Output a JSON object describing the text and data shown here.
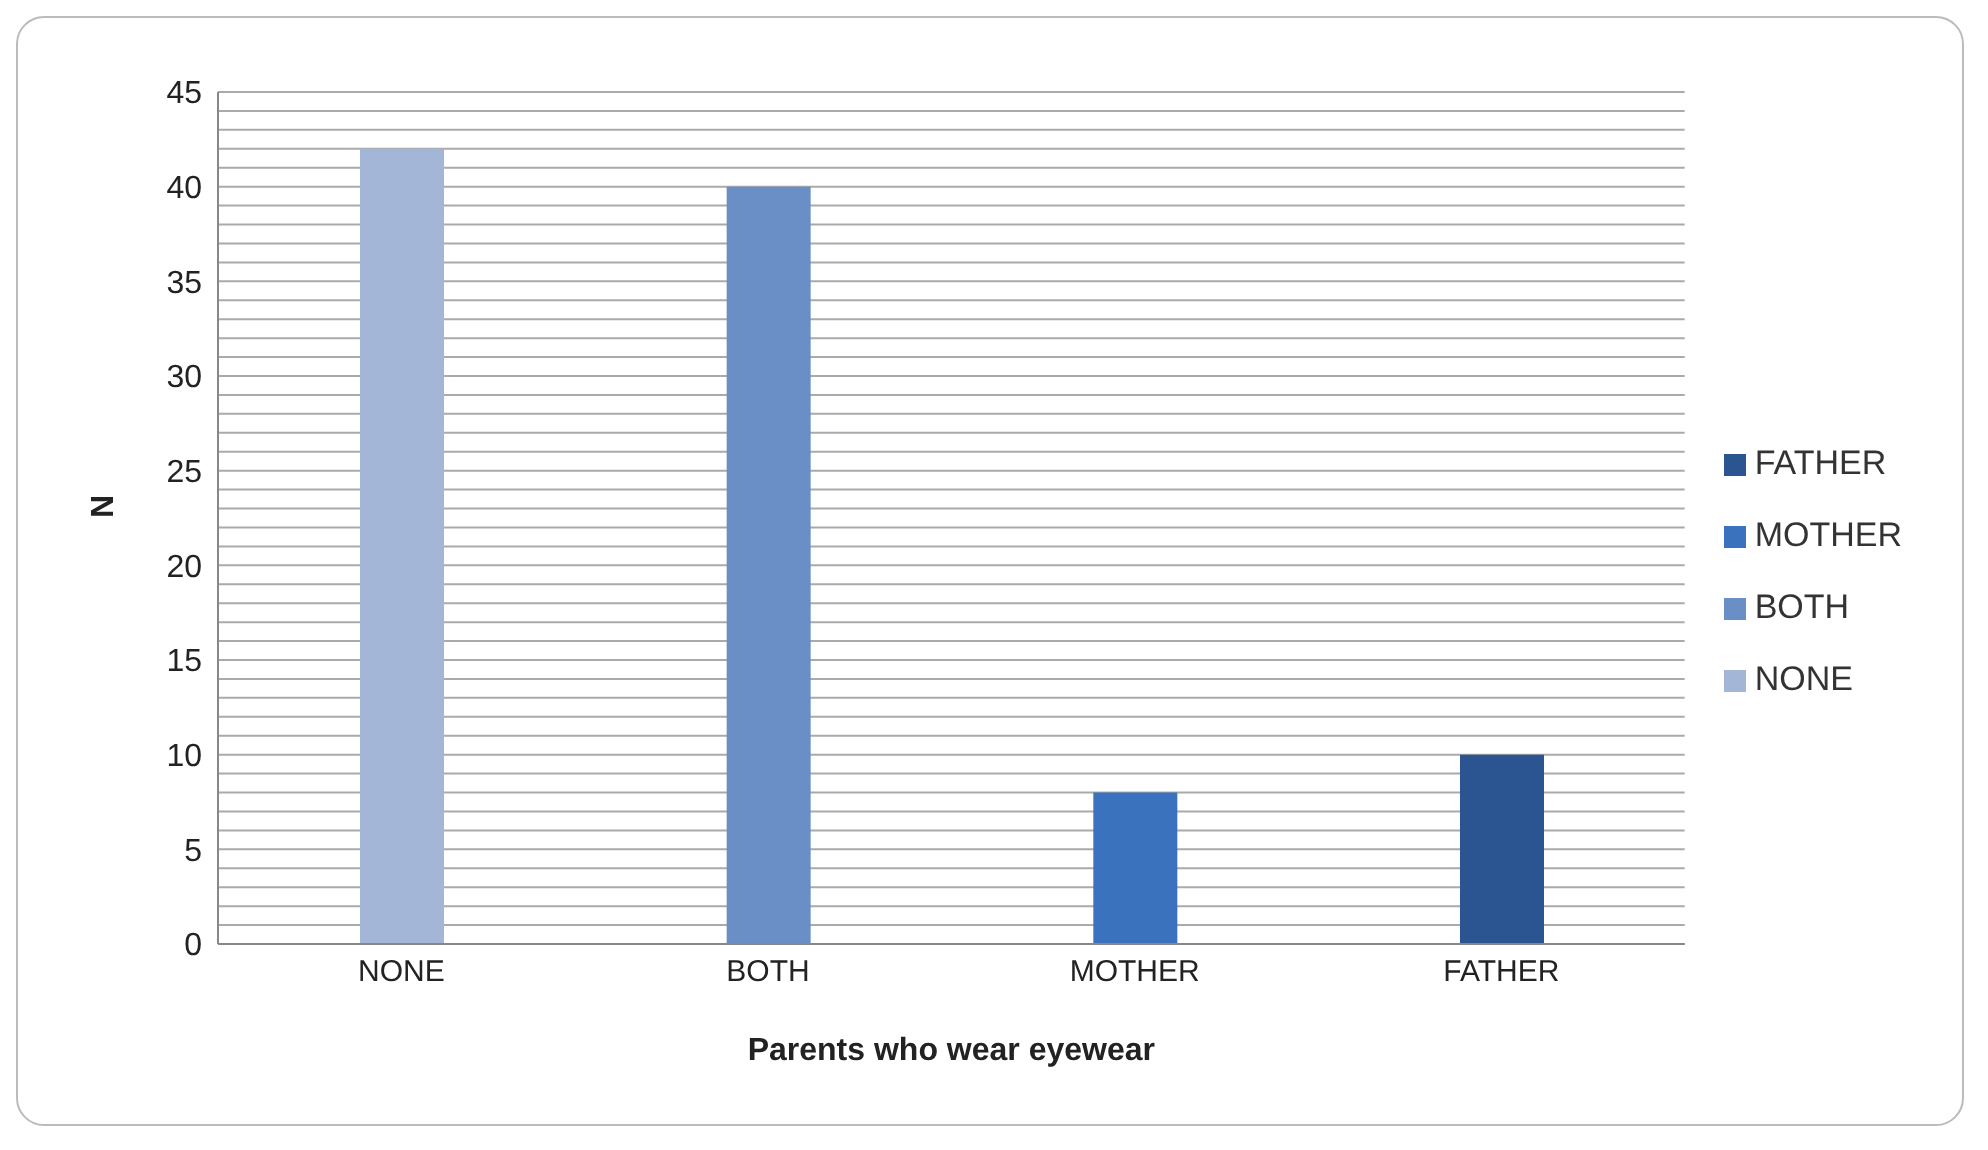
{
  "chart_data": {
    "type": "bar",
    "xlabel": "Parents who wear eyewear",
    "ylabel": "N",
    "categories": [
      "NONE",
      "BOTH",
      "MOTHER",
      "FATHER"
    ],
    "series": [
      {
        "name": "FATHER",
        "color": "#2b5591",
        "values": [
          null,
          null,
          null,
          10
        ]
      },
      {
        "name": "MOTHER",
        "color": "#3a72bd",
        "values": [
          null,
          null,
          8,
          null
        ]
      },
      {
        "name": "BOTH",
        "color": "#6a8ec6",
        "values": [
          null,
          40,
          null,
          null
        ]
      },
      {
        "name": "NONE",
        "color": "#a3b6d8",
        "values": [
          42,
          null,
          null,
          null
        ]
      }
    ],
    "ylim": [
      0,
      45
    ],
    "yticks": [
      0,
      {
        "value": 1,
        "label": null
      },
      {
        "value": 2,
        "label": null
      },
      {
        "value": 3,
        "label": null
      },
      {
        "value": 4,
        "label": null
      },
      5,
      {
        "value": 6,
        "label": null
      },
      {
        "value": 7,
        "label": null
      },
      {
        "value": 8,
        "label": null
      },
      {
        "value": 9,
        "label": null
      },
      10,
      {
        "value": 11,
        "label": null
      },
      {
        "value": 12,
        "label": null
      },
      {
        "value": 13,
        "label": null
      },
      {
        "value": 14,
        "label": null
      },
      15,
      {
        "value": 16,
        "label": null
      },
      {
        "value": 17,
        "label": null
      },
      {
        "value": 18,
        "label": null
      },
      {
        "value": 19,
        "label": null
      },
      20,
      {
        "value": 21,
        "label": null
      },
      {
        "value": 22,
        "label": null
      },
      {
        "value": 23,
        "label": null
      },
      {
        "value": 24,
        "label": null
      },
      25,
      {
        "value": 26,
        "label": null
      },
      {
        "value": 27,
        "label": null
      },
      {
        "value": 28,
        "label": null
      },
      {
        "value": 29,
        "label": null
      },
      30,
      {
        "value": 31,
        "label": null
      },
      {
        "value": 32,
        "label": null
      },
      {
        "value": 33,
        "label": null
      },
      {
        "value": 34,
        "label": null
      },
      35,
      {
        "value": 36,
        "label": null
      },
      {
        "value": 37,
        "label": null
      },
      {
        "value": 38,
        "label": null
      },
      {
        "value": 39,
        "label": null
      },
      40,
      {
        "value": 41,
        "label": null
      },
      {
        "value": 42,
        "label": null
      },
      {
        "value": 43,
        "label": null
      },
      {
        "value": 44,
        "label": null
      },
      45
    ],
    "grid": "y",
    "legend": "right"
  }
}
